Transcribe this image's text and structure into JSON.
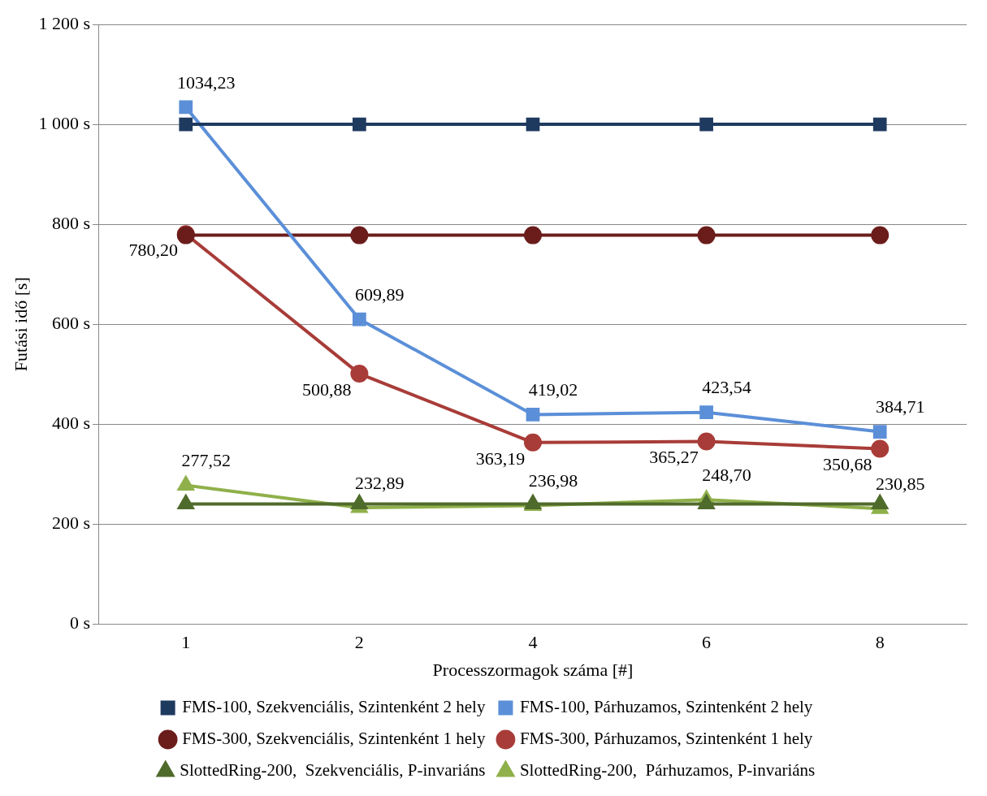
{
  "chart_data": {
    "type": "line",
    "xlabel": "Processzormagok száma [#]",
    "ylabel": "Futási idő [s]",
    "categories": [
      "1",
      "2",
      "4",
      "6",
      "8"
    ],
    "ylim": [
      0,
      1200
    ],
    "yticks": [
      {
        "value": 0,
        "label": "0 s"
      },
      {
        "value": 200,
        "label": "200 s"
      },
      {
        "value": 400,
        "label": "400 s"
      },
      {
        "value": 600,
        "label": "600 s"
      },
      {
        "value": 800,
        "label": "800 s"
      },
      {
        "value": 1000,
        "label": "1 000 s"
      },
      {
        "value": 1200,
        "label": "1 200 s"
      }
    ],
    "grid": "y",
    "legend": "bottom",
    "line_style": "solid",
    "series": [
      {
        "name": "FMS-100, Szekvenciális, Szintenként 2 hely",
        "color": "#1f3a5f",
        "marker": "square",
        "values": [
          1000,
          1000,
          1000,
          1000,
          1000
        ]
      },
      {
        "name": "FMS-100, Párhuzamos, Szintenként 2 hely",
        "color": "#5b8fd8",
        "marker": "square",
        "values": [
          1034.23,
          609.89,
          419.02,
          423.54,
          384.71
        ],
        "value_labels": [
          "1034,23",
          "609,89",
          "419,02",
          "423,54",
          "384,71"
        ]
      },
      {
        "name": "FMS-300, Szekvenciális, Szintenként 1 hely",
        "color": "#6b1d1b",
        "marker": "circle",
        "values": [
          778,
          778,
          778,
          778,
          778
        ]
      },
      {
        "name": "FMS-300, Párhuzamos, Szintenként 1 hely",
        "color": "#a83c38",
        "marker": "circle",
        "values": [
          780.2,
          500.88,
          363.19,
          365.27,
          350.68
        ],
        "value_labels": [
          "780,20",
          "500,88",
          "363,19",
          "365,27",
          "350,68"
        ]
      },
      {
        "name": "SlottedRing-200,  Szekvenciális, P-invariáns",
        "color": "#4f6b2b",
        "marker": "triangle",
        "values": [
          240,
          240,
          240,
          240,
          240
        ]
      },
      {
        "name": "SlottedRing-200,  Párhuzamos, P-invariáns",
        "color": "#8fb04a",
        "marker": "triangle",
        "values": [
          277.52,
          232.89,
          236.98,
          248.7,
          230.85
        ],
        "value_labels": [
          "277,52",
          "232,89",
          "236,98",
          "248,70",
          "230,85"
        ]
      }
    ]
  }
}
